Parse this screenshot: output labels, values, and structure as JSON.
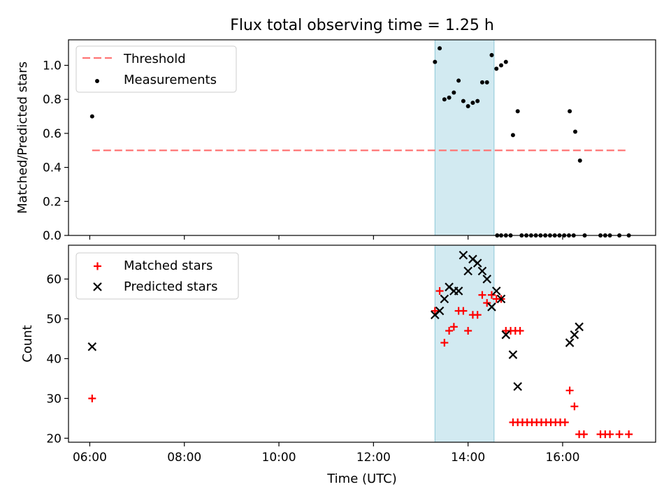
{
  "title": "Flux total observing time = 1.25 h",
  "chart_data": [
    {
      "type": "scatter",
      "ylabel": "Matched/Predicted stars",
      "xlim": [
        "05:33",
        "17:58"
      ],
      "ylim": [
        0,
        1.15
      ],
      "yticks": [
        "0.0",
        "0.2",
        "0.4",
        "0.6",
        "0.8",
        "1.0"
      ],
      "legend": {
        "placement": "top-left",
        "entries": [
          "Threshold",
          "Measurements"
        ]
      },
      "colors": {
        "threshold": "#ff7575",
        "points": "#000000",
        "span": "#add8e6"
      },
      "threshold": {
        "name": "Threshold",
        "value": 0.5,
        "x_start": "06:03",
        "x_end": "17:23"
      },
      "observing_window": [
        "13:18",
        "14:33"
      ],
      "series": [
        {
          "name": "Measurements",
          "points": [
            [
              "06:03",
              0.7
            ],
            [
              "13:18",
              1.02
            ],
            [
              "13:24",
              1.1
            ],
            [
              "13:30",
              0.8
            ],
            [
              "13:36",
              0.81
            ],
            [
              "13:42",
              0.84
            ],
            [
              "13:48",
              0.91
            ],
            [
              "13:54",
              0.79
            ],
            [
              "14:00",
              0.76
            ],
            [
              "14:06",
              0.78
            ],
            [
              "14:12",
              0.79
            ],
            [
              "14:18",
              0.9
            ],
            [
              "14:24",
              0.9
            ],
            [
              "14:30",
              1.06
            ],
            [
              "14:36",
              0.98
            ],
            [
              "14:42",
              1.0
            ],
            [
              "14:48",
              1.02
            ],
            [
              "14:37",
              0.0
            ],
            [
              "14:42",
              0.0
            ],
            [
              "14:48",
              0.0
            ],
            [
              "14:54",
              0.0
            ],
            [
              "14:57",
              0.59
            ],
            [
              "15:03",
              0.73
            ],
            [
              "15:08",
              0.0
            ],
            [
              "15:14",
              0.0
            ],
            [
              "15:20",
              0.0
            ],
            [
              "15:26",
              0.0
            ],
            [
              "15:32",
              0.0
            ],
            [
              "15:38",
              0.0
            ],
            [
              "15:44",
              0.0
            ],
            [
              "15:50",
              0.0
            ],
            [
              "15:56",
              0.0
            ],
            [
              "16:02",
              0.0
            ],
            [
              "16:08",
              0.0
            ],
            [
              "16:14",
              0.0
            ],
            [
              "16:09",
              0.73
            ],
            [
              "16:16",
              0.61
            ],
            [
              "16:22",
              0.44
            ],
            [
              "16:28",
              0.0
            ],
            [
              "16:48",
              0.0
            ],
            [
              "16:54",
              0.0
            ],
            [
              "17:00",
              0.0
            ],
            [
              "17:12",
              0.0
            ],
            [
              "17:24",
              0.0
            ]
          ]
        }
      ]
    },
    {
      "type": "scatter",
      "xlabel": "Time (UTC)",
      "ylabel": "Count",
      "xlim": [
        "05:33",
        "17:58"
      ],
      "ylim": [
        19,
        68.5
      ],
      "xticks": [
        "06:00",
        "08:00",
        "10:00",
        "12:00",
        "14:00",
        "16:00"
      ],
      "yticks": [
        "20",
        "30",
        "40",
        "50",
        "60"
      ],
      "legend": {
        "placement": "top-left",
        "entries": [
          "Matched stars",
          "Predicted stars"
        ]
      },
      "colors": {
        "matched": "#ff0000",
        "predicted": "#000000",
        "span": "#add8e6"
      },
      "observing_window": [
        "13:18",
        "14:33"
      ],
      "series": [
        {
          "name": "Matched stars",
          "marker": "plus",
          "points": [
            [
              "06:03",
              30
            ],
            [
              "13:18",
              52
            ],
            [
              "13:24",
              57
            ],
            [
              "13:30",
              44
            ],
            [
              "13:36",
              47
            ],
            [
              "13:42",
              48
            ],
            [
              "13:48",
              52
            ],
            [
              "13:54",
              52
            ],
            [
              "14:00",
              47
            ],
            [
              "14:06",
              51
            ],
            [
              "14:12",
              51
            ],
            [
              "14:18",
              56
            ],
            [
              "14:24",
              54
            ],
            [
              "14:30",
              56
            ],
            [
              "14:36",
              55
            ],
            [
              "14:42",
              55
            ],
            [
              "14:48",
              47
            ],
            [
              "14:54",
              47
            ],
            [
              "15:00",
              47
            ],
            [
              "15:06",
              47
            ],
            [
              "14:57",
              24
            ],
            [
              "15:03",
              24
            ],
            [
              "15:09",
              24
            ],
            [
              "15:15",
              24
            ],
            [
              "15:21",
              24
            ],
            [
              "15:27",
              24
            ],
            [
              "15:33",
              24
            ],
            [
              "15:39",
              24
            ],
            [
              "15:45",
              24
            ],
            [
              "15:51",
              24
            ],
            [
              "15:57",
              24
            ],
            [
              "16:03",
              24
            ],
            [
              "16:09",
              32
            ],
            [
              "16:15",
              28
            ],
            [
              "16:21",
              21
            ],
            [
              "16:27",
              21
            ],
            [
              "16:48",
              21
            ],
            [
              "16:54",
              21
            ],
            [
              "17:00",
              21
            ],
            [
              "17:12",
              21
            ],
            [
              "17:24",
              21
            ]
          ]
        },
        {
          "name": "Predicted stars",
          "marker": "x",
          "points": [
            [
              "06:03",
              43
            ],
            [
              "13:18",
              51
            ],
            [
              "13:24",
              52
            ],
            [
              "13:30",
              55
            ],
            [
              "13:36",
              58
            ],
            [
              "13:42",
              57
            ],
            [
              "13:48",
              57
            ],
            [
              "13:54",
              66
            ],
            [
              "14:00",
              62
            ],
            [
              "14:06",
              65
            ],
            [
              "14:12",
              64
            ],
            [
              "14:18",
              62
            ],
            [
              "14:24",
              60
            ],
            [
              "14:30",
              53
            ],
            [
              "14:36",
              57
            ],
            [
              "14:42",
              55
            ],
            [
              "14:48",
              46
            ],
            [
              "14:57",
              41
            ],
            [
              "15:03",
              33
            ],
            [
              "16:09",
              44
            ],
            [
              "16:15",
              46
            ],
            [
              "16:21",
              48
            ]
          ]
        }
      ]
    }
  ]
}
